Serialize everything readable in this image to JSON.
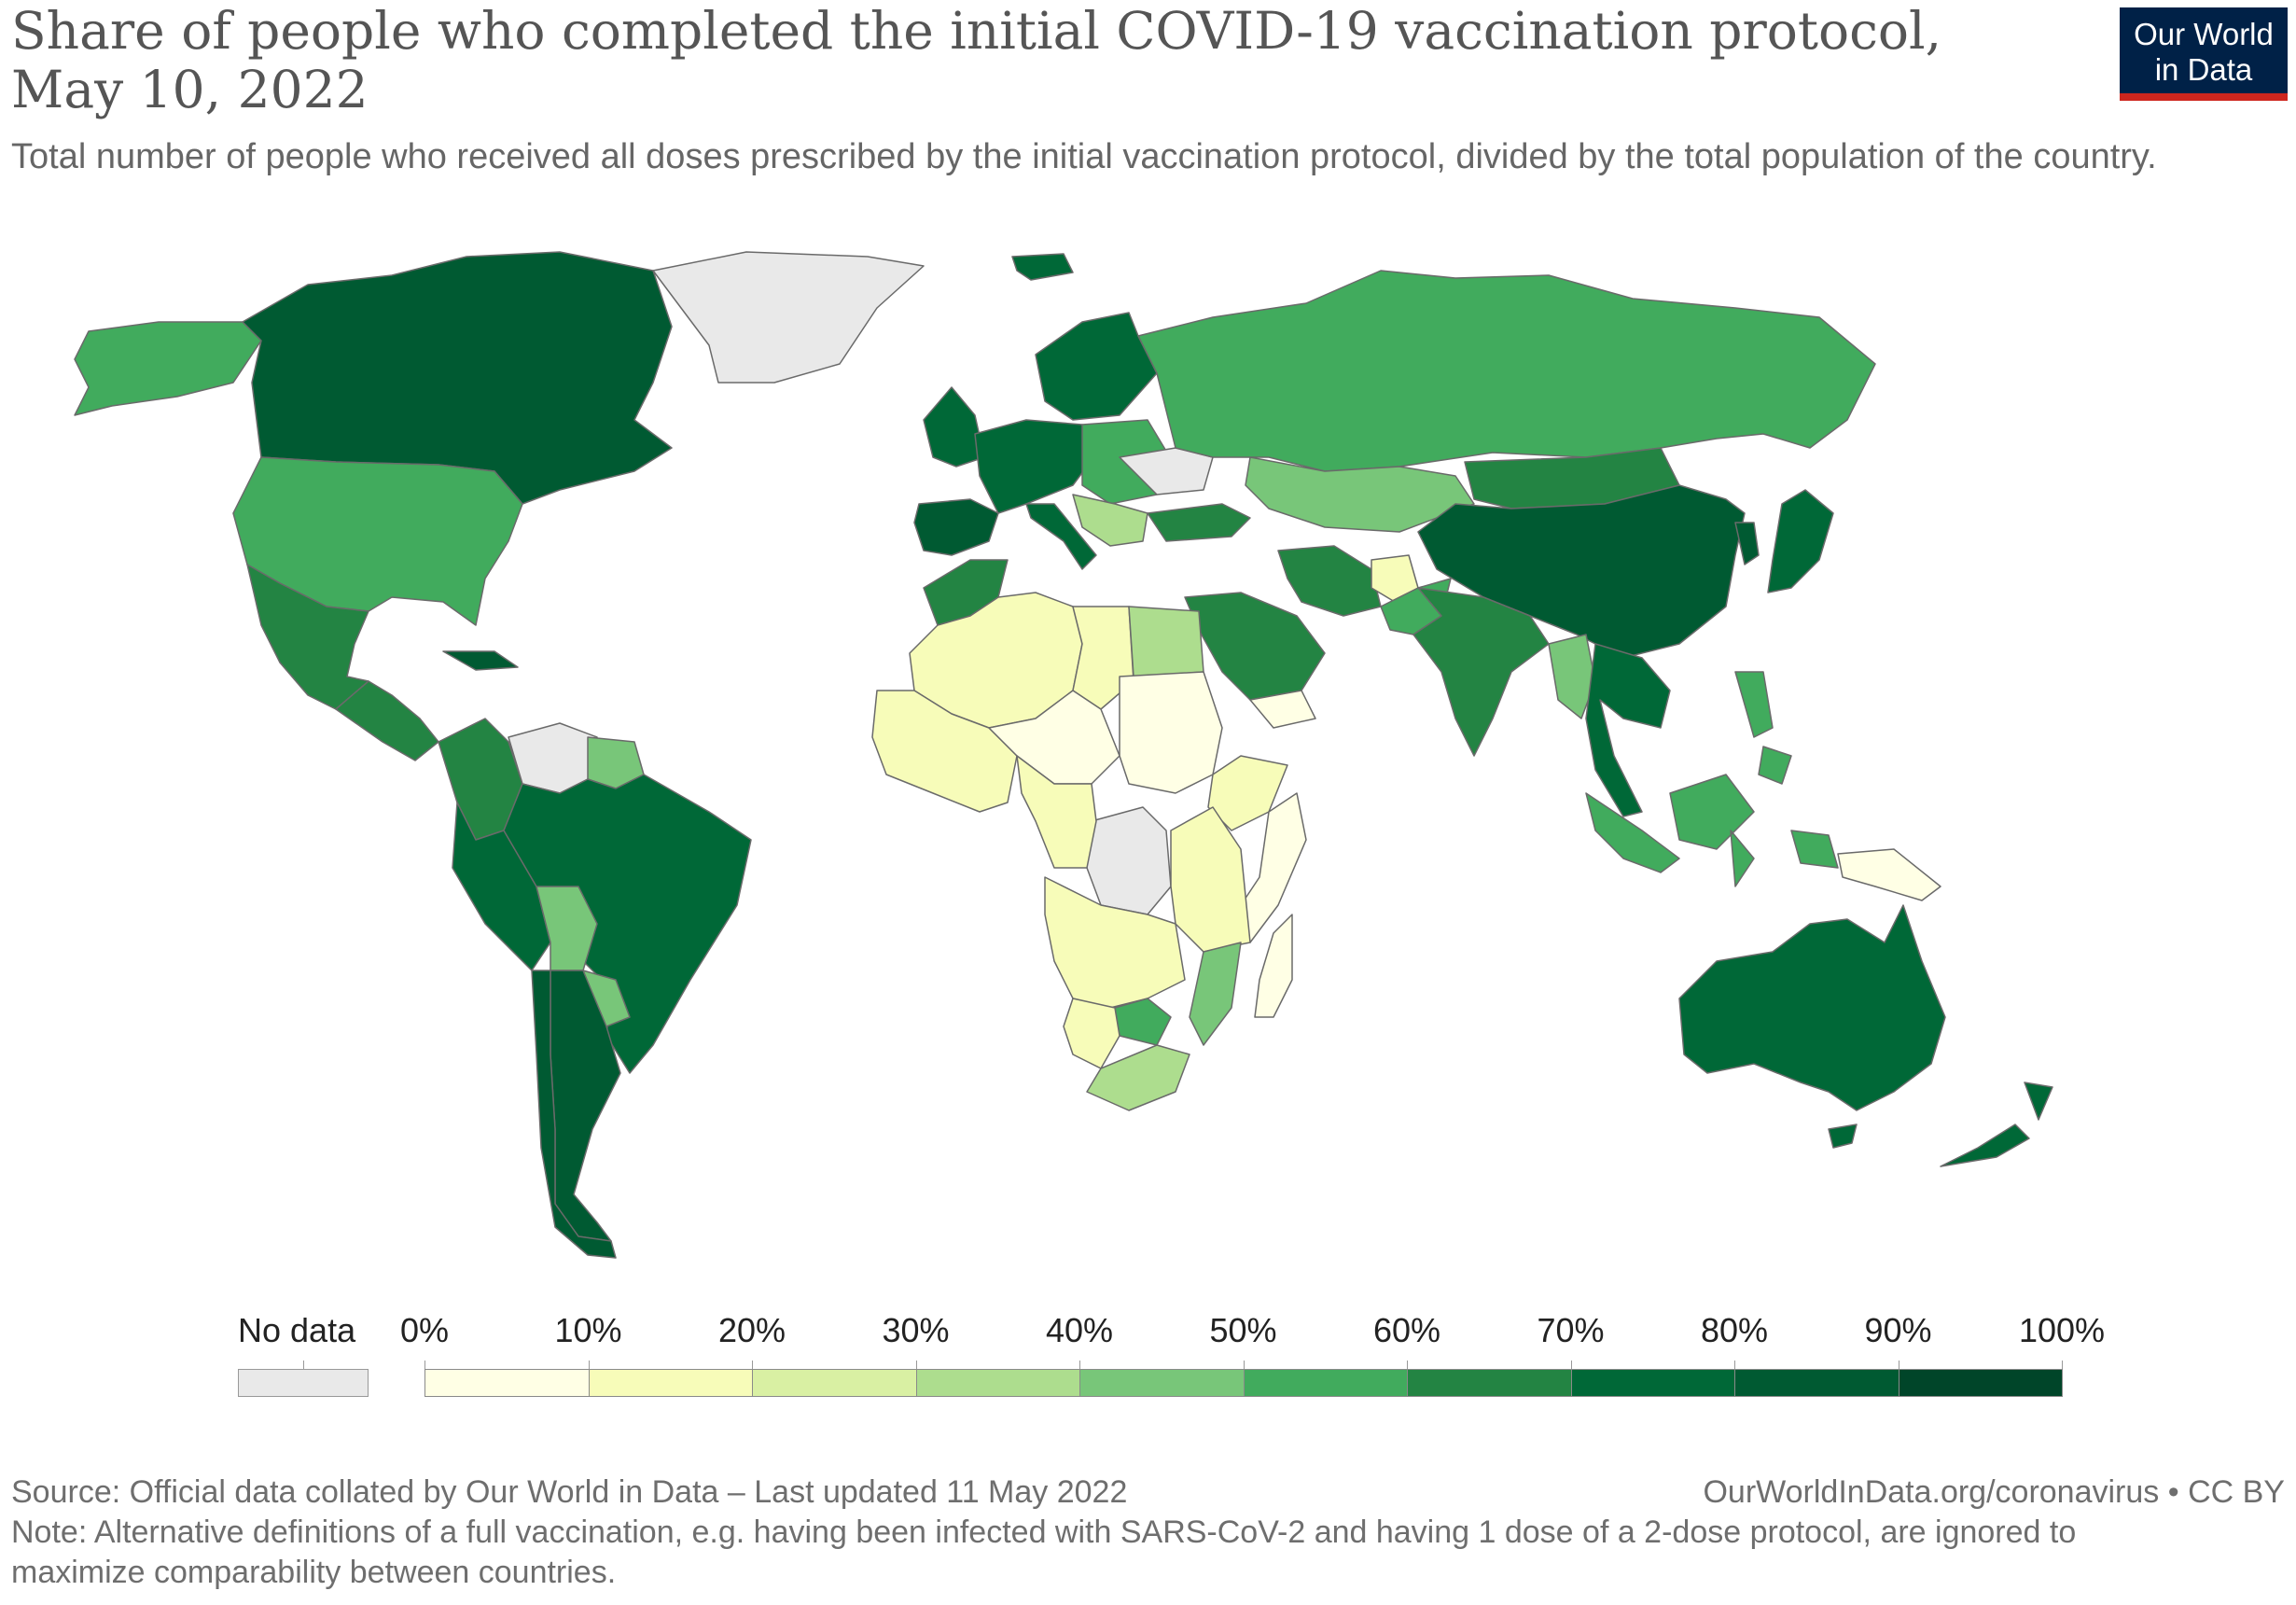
{
  "header": {
    "title": "Share of people who completed the initial COVID-19 vaccination protocol, May 10, 2022",
    "subtitle": "Total number of people who received all doses prescribed by the initial vaccination protocol, divided by the total population of the country.",
    "logo_line1": "Our World",
    "logo_line2": "in Data"
  },
  "colors": {
    "no_data": "#e9e9e9",
    "bins": [
      "#ffffe5",
      "#f7fcb9",
      "#d9f0a3",
      "#addd8e",
      "#78c679",
      "#41ab5d",
      "#238443",
      "#006837",
      "#005a32",
      "#004529"
    ],
    "ocean": "#ffffff",
    "logo_bg": "#002147",
    "logo_accent": "#ce261e"
  },
  "legend": {
    "no_data_label": "No data",
    "ticks": [
      "0%",
      "10%",
      "20%",
      "30%",
      "40%",
      "50%",
      "60%",
      "70%",
      "80%",
      "90%",
      "100%"
    ]
  },
  "map_data": {
    "type": "choropleth",
    "unit": "%",
    "regions": [
      {
        "name": "Canada",
        "bin": 8
      },
      {
        "name": "Alaska (United States)",
        "bin": 5
      },
      {
        "name": "United States",
        "bin": 5
      },
      {
        "name": "Mexico",
        "bin": 6
      },
      {
        "name": "Central America",
        "bin": 6
      },
      {
        "name": "Cuba",
        "bin": 8
      },
      {
        "name": "Greenland",
        "bin": -1
      },
      {
        "name": "Colombia",
        "bin": 6
      },
      {
        "name": "Venezuela",
        "bin": -1
      },
      {
        "name": "Guianas",
        "bin": 4
      },
      {
        "name": "Peru",
        "bin": 7
      },
      {
        "name": "Brazil",
        "bin": 7
      },
      {
        "name": "Bolivia",
        "bin": 4
      },
      {
        "name": "Paraguay",
        "bin": 4
      },
      {
        "name": "Argentina",
        "bin": 8
      },
      {
        "name": "Chile",
        "bin": 8
      },
      {
        "name": "Iceland",
        "bin": 7
      },
      {
        "name": "United Kingdom & Ireland",
        "bin": 7
      },
      {
        "name": "Scandinavia",
        "bin": 7
      },
      {
        "name": "Western Europe",
        "bin": 7
      },
      {
        "name": "Iberia",
        "bin": 8
      },
      {
        "name": "Italy",
        "bin": 7
      },
      {
        "name": "Eastern Europe",
        "bin": 5
      },
      {
        "name": "Balkans",
        "bin": 3
      },
      {
        "name": "Ukraine",
        "bin": -1
      },
      {
        "name": "Turkey",
        "bin": 6
      },
      {
        "name": "Russia",
        "bin": 5
      },
      {
        "name": "Kazakhstan & Central Asia",
        "bin": 4
      },
      {
        "name": "Mongolia",
        "bin": 6
      },
      {
        "name": "China",
        "bin": 8
      },
      {
        "name": "Japan",
        "bin": 7
      },
      {
        "name": "Korea",
        "bin": 8
      },
      {
        "name": "Iran",
        "bin": 6
      },
      {
        "name": "Afghanistan",
        "bin": 1
      },
      {
        "name": "Pakistan",
        "bin": 5
      },
      {
        "name": "India",
        "bin": 6
      },
      {
        "name": "Saudi Arabia",
        "bin": 6
      },
      {
        "name": "Yemen",
        "bin": 0
      },
      {
        "name": "Myanmar",
        "bin": 4
      },
      {
        "name": "Southeast Asia",
        "bin": 7
      },
      {
        "name": "Indonesia",
        "bin": 5
      },
      {
        "name": "Philippines",
        "bin": 5
      },
      {
        "name": "Papua New Guinea",
        "bin": 0
      },
      {
        "name": "Australia",
        "bin": 7
      },
      {
        "name": "New Zealand",
        "bin": 7
      },
      {
        "name": "Morocco",
        "bin": 6
      },
      {
        "name": "Algeria & Sahara",
        "bin": 1
      },
      {
        "name": "Libya",
        "bin": 1
      },
      {
        "name": "Egypt",
        "bin": 3
      },
      {
        "name": "West Africa",
        "bin": 1
      },
      {
        "name": "Sahel",
        "bin": 0
      },
      {
        "name": "Sudan",
        "bin": 0
      },
      {
        "name": "Ethiopia",
        "bin": 1
      },
      {
        "name": "Somalia",
        "bin": 0
      },
      {
        "name": "DR Congo",
        "bin": -1
      },
      {
        "name": "Central Africa",
        "bin": 1
      },
      {
        "name": "East Africa",
        "bin": 1
      },
      {
        "name": "Angola & Zambia",
        "bin": 1
      },
      {
        "name": "Mozambique",
        "bin": 4
      },
      {
        "name": "Madagascar",
        "bin": 0
      },
      {
        "name": "Botswana",
        "bin": 5
      },
      {
        "name": "Namibia",
        "bin": 1
      },
      {
        "name": "South Africa",
        "bin": 3
      }
    ]
  },
  "footer": {
    "source": "Source: Official data collated by Our World in Data – Last updated 11 May 2022",
    "url": "OurWorldInData.org/coronavirus • CC BY",
    "note": "Note: Alternative definitions of a full vaccination, e.g. having been infected with SARS-CoV-2 and having 1 dose of a 2-dose protocol, are ignored to maximize comparability between countries."
  }
}
